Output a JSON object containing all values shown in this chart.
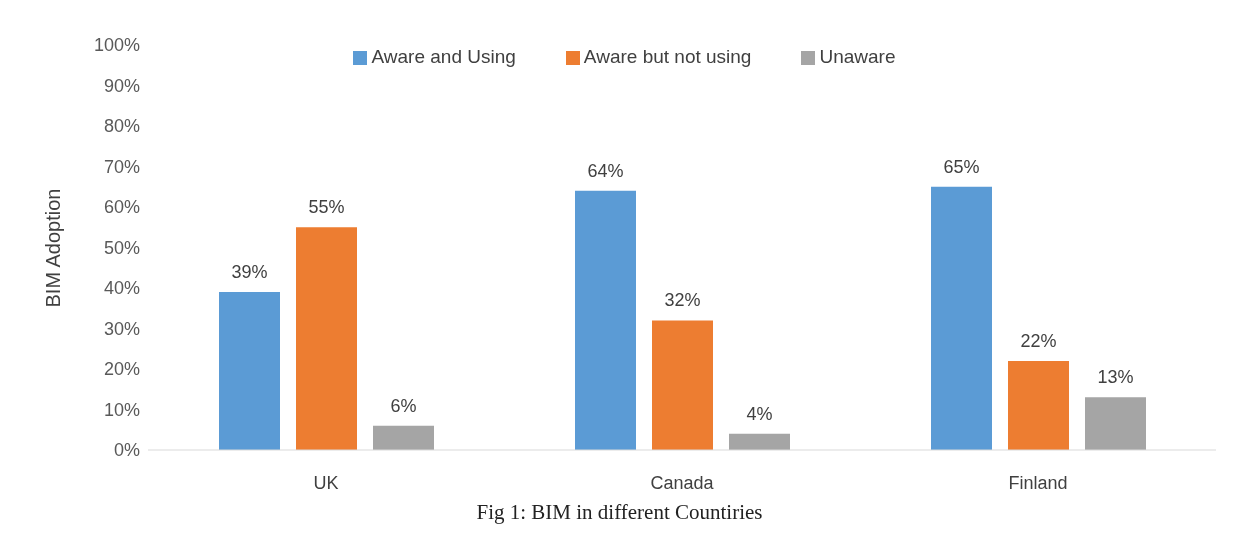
{
  "chart_data": {
    "type": "bar",
    "title": "Fig 1: BIM in different Countiries",
    "ylabel": "BIM Adoption",
    "categories": [
      "UK",
      "Canada",
      "Finland"
    ],
    "series": [
      {
        "name": "Aware and Using",
        "color": "#5b9bd5",
        "values": [
          39,
          64,
          65
        ],
        "value_labels": [
          "39%",
          "64%",
          "65%"
        ]
      },
      {
        "name": "Aware but not using",
        "color": "#ed7d31",
        "values": [
          55,
          32,
          22
        ],
        "value_labels": [
          "55%",
          "32%",
          "22%"
        ]
      },
      {
        "name": "Unaware",
        "color": "#a5a5a5",
        "values": [
          6,
          4,
          13
        ],
        "value_labels": [
          "6%",
          "4%",
          "13%"
        ]
      }
    ],
    "ylim": [
      0,
      100
    ],
    "yticks": [
      {
        "value": 0,
        "label": "0%"
      },
      {
        "value": 10,
        "label": "10%"
      },
      {
        "value": 20,
        "label": "20%"
      },
      {
        "value": 30,
        "label": "30%"
      },
      {
        "value": 40,
        "label": "40%"
      },
      {
        "value": 50,
        "label": "50%"
      },
      {
        "value": 60,
        "label": "60%"
      },
      {
        "value": 70,
        "label": "70%"
      },
      {
        "value": 80,
        "label": "80%"
      },
      {
        "value": 90,
        "label": "90%"
      },
      {
        "value": 100,
        "label": "100%"
      }
    ],
    "grid": false,
    "legend": "top"
  }
}
